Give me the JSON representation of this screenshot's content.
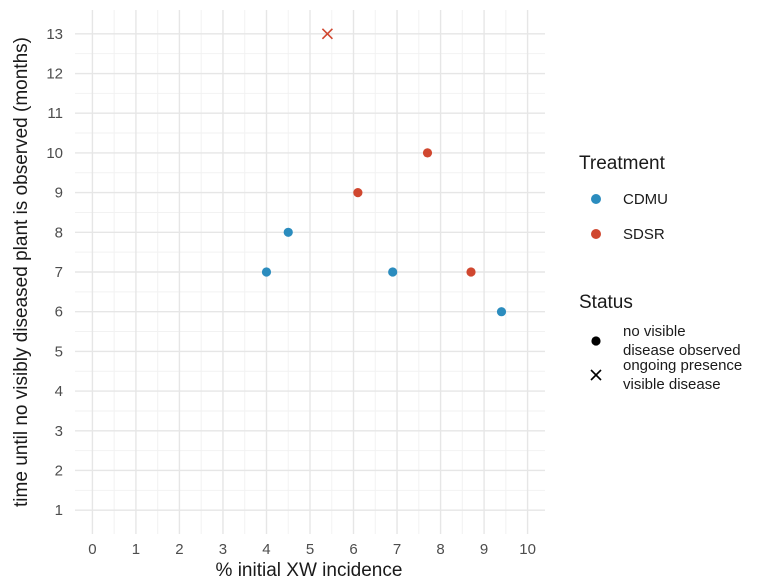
{
  "chart_data": {
    "type": "scatter",
    "xlabel": "% initial XW incidence",
    "ylabel": "time until no visibly diseased plant is observed (months)",
    "xlim": [
      -0.4,
      10.4
    ],
    "ylim": [
      0.4,
      13.6
    ],
    "xticks": [
      0,
      1,
      2,
      3,
      4,
      5,
      6,
      7,
      8,
      9,
      10
    ],
    "yticks": [
      1,
      2,
      3,
      4,
      5,
      6,
      7,
      8,
      9,
      10,
      11,
      12,
      13
    ],
    "grid": true,
    "legend_placement": "right",
    "treatment_legend": {
      "title": "Treatment",
      "items": [
        {
          "label": "CDMU",
          "color": "#2b8cbe"
        },
        {
          "label": "SDSR",
          "color": "#d0472f"
        }
      ]
    },
    "status_legend": {
      "title": "Status",
      "items": [
        {
          "label_lines": [
            "no visible",
            "disease observed"
          ],
          "shape": "circle"
        },
        {
          "label_lines": [
            "ongoing presence",
            "visible disease"
          ],
          "shape": "cross"
        }
      ]
    },
    "series": [
      {
        "name": "CDMU",
        "color": "#2b8cbe",
        "points": [
          {
            "x": 4.0,
            "y": 7,
            "status": "no visible disease observed"
          },
          {
            "x": 4.5,
            "y": 8,
            "status": "no visible disease observed"
          },
          {
            "x": 6.9,
            "y": 7,
            "status": "no visible disease observed"
          },
          {
            "x": 9.4,
            "y": 6,
            "status": "no visible disease observed"
          }
        ]
      },
      {
        "name": "SDSR",
        "color": "#d0472f",
        "points": [
          {
            "x": 6.1,
            "y": 9,
            "status": "no visible disease observed"
          },
          {
            "x": 7.7,
            "y": 10,
            "status": "no visible disease observed"
          },
          {
            "x": 8.7,
            "y": 7,
            "status": "no visible disease observed"
          },
          {
            "x": 5.4,
            "y": 13,
            "status": "ongoing presence visible disease"
          }
        ]
      }
    ]
  }
}
